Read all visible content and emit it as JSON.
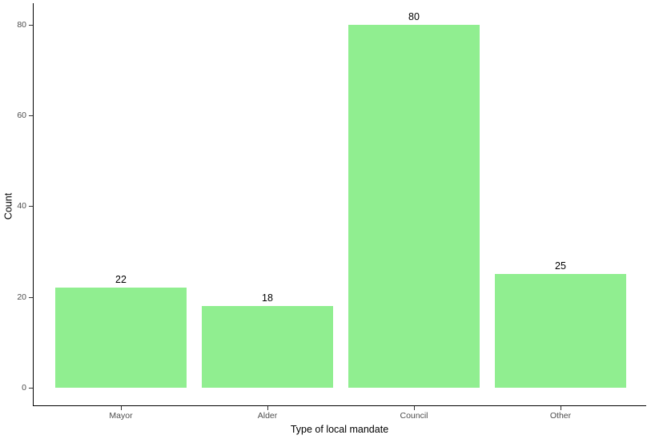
{
  "chart_data": {
    "type": "bar",
    "title": "",
    "xlabel": "Type of local mandate",
    "ylabel": "Count",
    "categories": [
      "Mayor",
      "Alder",
      "Council",
      "Other"
    ],
    "values": [
      22,
      18,
      80,
      25
    ],
    "bar_labels": [
      "22",
      "18",
      "80",
      "25"
    ],
    "yticks": [
      0,
      20,
      40,
      60,
      80
    ],
    "ytick_labels": [
      "0",
      "20",
      "40",
      "60",
      "80"
    ],
    "ylim": [
      0,
      84
    ],
    "grid": false,
    "legend": "none",
    "colors": {
      "bar_fill": "#90EE90",
      "axis_line": "#000000",
      "tick_mark": "#333333",
      "tick_label": "#4D4D4D",
      "axis_title": "#000000",
      "value_label": "#000000",
      "background": "#FFFFFF"
    }
  }
}
